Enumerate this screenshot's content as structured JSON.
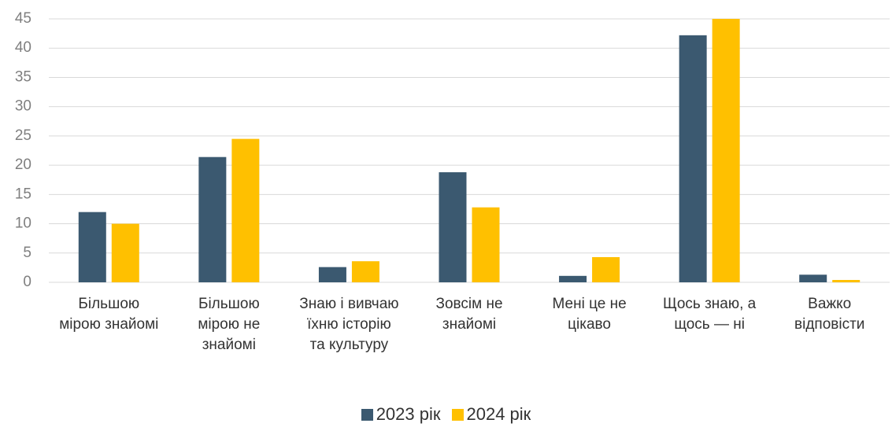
{
  "chart_data": {
    "type": "bar",
    "categories": [
      "Більшою мірою знайомі",
      "Більшою мірою не знайомі",
      "Знаю і вивчаю їхню історію та культуру",
      "Зовсім не знайомі",
      "Мені це не цікаво",
      "Щось знаю, а щось — ні",
      "Важко відповісти"
    ],
    "series": [
      {
        "name": "2023 рік",
        "color": "#3b5970",
        "values": [
          12.0,
          21.4,
          2.6,
          18.8,
          1.1,
          42.2,
          1.3
        ]
      },
      {
        "name": "2024 рік",
        "color": "#ffc000",
        "values": [
          10.0,
          24.5,
          3.6,
          12.8,
          4.3,
          45.0,
          0.4
        ]
      }
    ],
    "ylim": [
      0,
      45
    ],
    "yticks": [
      0,
      5,
      10,
      15,
      20,
      25,
      30,
      35,
      40,
      45
    ],
    "grid": true,
    "legend": "bottom"
  }
}
